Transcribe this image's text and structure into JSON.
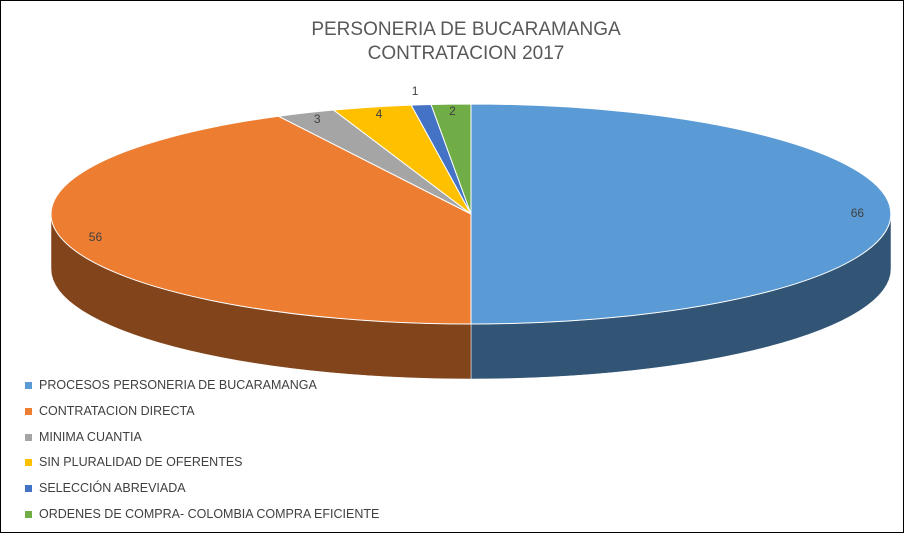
{
  "chart_data": {
    "type": "pie",
    "title": "PERSONERIA DE BUCARAMANGA",
    "subtitle": "CONTRATACION 2017",
    "categories": [
      "PROCESOS PERSONERIA DE BUCARAMANGA",
      "CONTRATACION DIRECTA",
      "MINIMA CUANTIA",
      "SIN PLURALIDAD DE OFERENTES",
      "SELECCIÓN ABREVIADA",
      "ORDENES DE COMPRA- COLOMBIA COMPRA EFICIENTE"
    ],
    "values": [
      66,
      56,
      3,
      4,
      1,
      2
    ],
    "colors": [
      "#5b9bd5",
      "#ed7d31",
      "#a5a5a5",
      "#ffc000",
      "#4472c4",
      "#70ad47"
    ],
    "legend": "bottom-left"
  }
}
